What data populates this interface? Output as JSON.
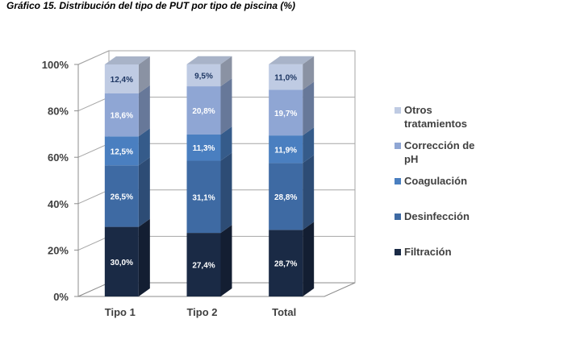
{
  "chart_data": {
    "type": "bar",
    "stacked": true,
    "three_d": true,
    "title": "Gráfico 15. Distribución del tipo de PUT por tipo de piscina (%)",
    "categories": [
      "Tipo 1",
      "Tipo 2",
      "Total"
    ],
    "series": [
      {
        "name": "Filtración",
        "values": [
          30.0,
          27.4,
          28.7
        ],
        "labels": [
          "30,0%",
          "27,4%",
          "28,7%"
        ],
        "color": "#1a2a45"
      },
      {
        "name": "Desinfección",
        "values": [
          26.5,
          31.1,
          28.8
        ],
        "labels": [
          "26,5%",
          "31,1%",
          "28,8%"
        ],
        "color": "#3e6aa3"
      },
      {
        "name": "Coagulación",
        "values": [
          12.5,
          11.3,
          11.9
        ],
        "labels": [
          "12,5%",
          "11,3%",
          "11,9%"
        ],
        "color": "#4a7fc0"
      },
      {
        "name": "Corrección de pH",
        "values": [
          18.6,
          20.8,
          19.7
        ],
        "labels": [
          "18,6%",
          "20,8%",
          "19,7%"
        ],
        "color": "#8fa6d4"
      },
      {
        "name": "Otros tratamientos",
        "values": [
          12.4,
          9.5,
          11.0
        ],
        "labels": [
          "12,4%",
          "9,5%",
          "11,0%"
        ],
        "color": "#bfcbe3"
      }
    ],
    "y_ticks": [
      "0%",
      "20%",
      "40%",
      "60%",
      "80%",
      "100%"
    ],
    "ylim": [
      0,
      100
    ],
    "grid": true,
    "legend_position": "right",
    "legend_entries": [
      {
        "series": "Otros tratamientos",
        "lines": [
          "Otros",
          "tratamientos"
        ]
      },
      {
        "series": "Corrección de pH",
        "lines": [
          "Corrección de",
          "pH"
        ]
      },
      {
        "series": "Coagulación",
        "lines": [
          "Coagulación"
        ]
      },
      {
        "series": "Desinfección",
        "lines": [
          "Desinfección"
        ]
      },
      {
        "series": "Filtración",
        "lines": [
          "Filtración"
        ]
      }
    ]
  }
}
